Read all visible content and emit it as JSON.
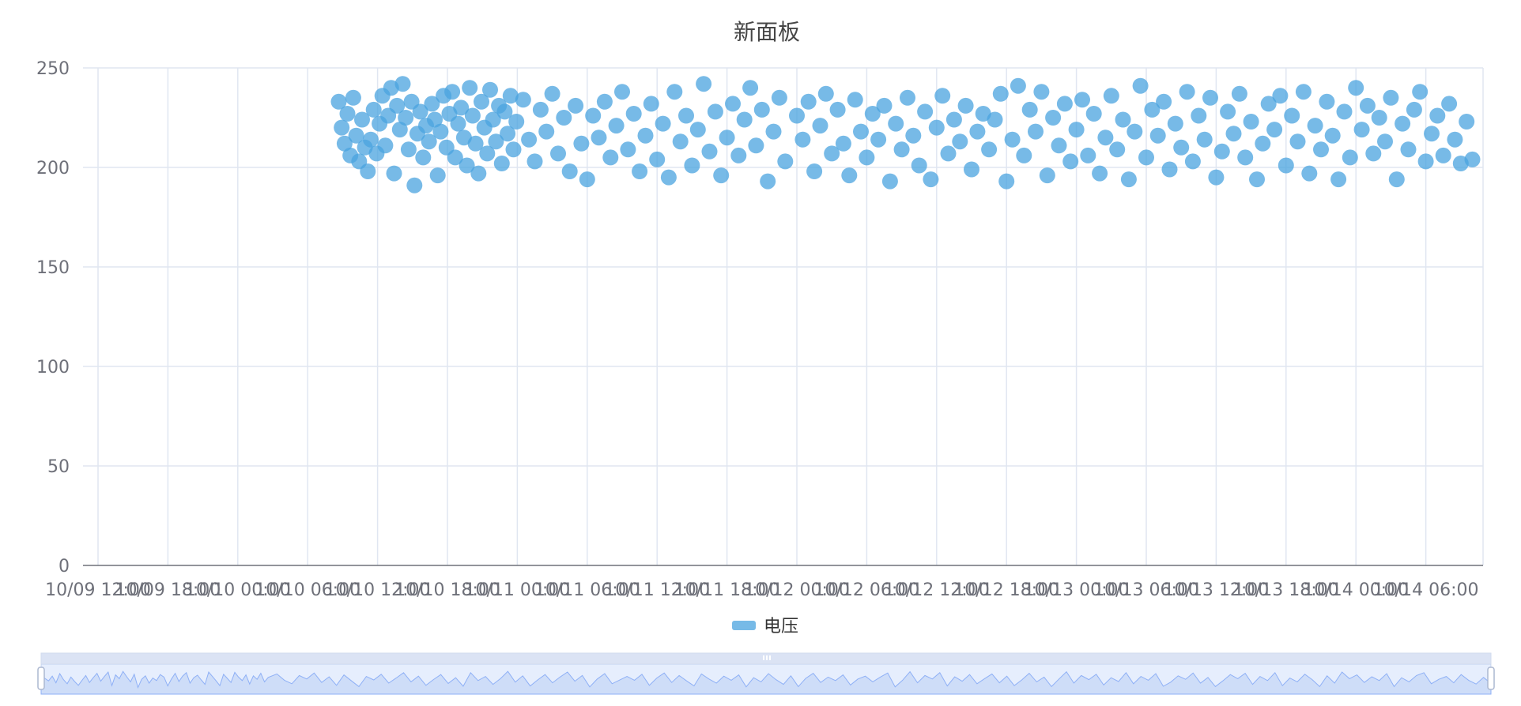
{
  "chart_data": {
    "type": "scatter",
    "title": "新面板",
    "legend": {
      "entries": [
        "电压"
      ],
      "position": "bottom-center"
    },
    "xaxis": {
      "type": "time",
      "tick_labels": [
        "10/09 12:00",
        "10/09 18:00",
        "10/10 00:00",
        "10/10 06:00",
        "10/10 12:00",
        "10/10 18:00",
        "10/11 00:00",
        "10/11 06:00",
        "10/11 12:00",
        "10/11 18:00",
        "10/12 00:00",
        "10/12 06:00",
        "10/12 12:00",
        "10/12 18:00",
        "10/13 00:00",
        "10/13 06:00",
        "10/13 12:00",
        "10/13 18:00",
        "10/14 00:00",
        "10/14 06:00"
      ],
      "range": [
        "10/09 12:00",
        "10/14 10:00"
      ]
    },
    "yaxis": {
      "range": [
        0,
        250
      ],
      "ticks": [
        0,
        50,
        100,
        150,
        200,
        250
      ]
    },
    "grid": true,
    "series": [
      {
        "name": "电压",
        "color": "#4aa3df",
        "points": [
          [
            "10/10 08:40",
            233
          ],
          [
            "10/10 08:55",
            220
          ],
          [
            "10/10 09:10",
            212
          ],
          [
            "10/10 09:25",
            227
          ],
          [
            "10/10 09:40",
            206
          ],
          [
            "10/10 09:55",
            235
          ],
          [
            "10/10 10:10",
            216
          ],
          [
            "10/10 10:25",
            203
          ],
          [
            "10/10 10:40",
            224
          ],
          [
            "10/10 10:55",
            210
          ],
          [
            "10/10 11:10",
            198
          ],
          [
            "10/10 11:25",
            214
          ],
          [
            "10/10 11:40",
            229
          ],
          [
            "10/10 11:55",
            207
          ],
          [
            "10/10 12:10",
            222
          ],
          [
            "10/10 12:25",
            236
          ],
          [
            "10/10 12:40",
            211
          ],
          [
            "10/10 12:55",
            226
          ],
          [
            "10/10 13:10",
            240
          ],
          [
            "10/10 13:25",
            197
          ],
          [
            "10/10 13:40",
            231
          ],
          [
            "10/10 13:55",
            219
          ],
          [
            "10/10 14:10",
            242
          ],
          [
            "10/10 14:25",
            225
          ],
          [
            "10/10 14:40",
            209
          ],
          [
            "10/10 14:55",
            233
          ],
          [
            "10/10 15:10",
            191
          ],
          [
            "10/10 15:25",
            217
          ],
          [
            "10/10 15:40",
            228
          ],
          [
            "10/10 15:55",
            205
          ],
          [
            "10/10 16:10",
            221
          ],
          [
            "10/10 16:25",
            213
          ],
          [
            "10/10 16:40",
            232
          ],
          [
            "10/10 16:55",
            224
          ],
          [
            "10/10 17:10",
            196
          ],
          [
            "10/10 17:25",
            218
          ],
          [
            "10/10 17:40",
            236
          ],
          [
            "10/10 17:55",
            210
          ],
          [
            "10/10 18:10",
            227
          ],
          [
            "10/10 18:25",
            238
          ],
          [
            "10/10 18:40",
            205
          ],
          [
            "10/10 18:55",
            222
          ],
          [
            "10/10 19:10",
            230
          ],
          [
            "10/10 19:25",
            215
          ],
          [
            "10/10 19:40",
            201
          ],
          [
            "10/10 19:55",
            240
          ],
          [
            "10/10 20:10",
            226
          ],
          [
            "10/10 20:25",
            212
          ],
          [
            "10/10 20:40",
            197
          ],
          [
            "10/10 20:55",
            233
          ],
          [
            "10/10 21:10",
            220
          ],
          [
            "10/10 21:25",
            207
          ],
          [
            "10/10 21:40",
            239
          ],
          [
            "10/10 21:55",
            224
          ],
          [
            "10/10 22:10",
            213
          ],
          [
            "10/10 22:25",
            231
          ],
          [
            "10/10 22:40",
            202
          ],
          [
            "10/10 22:55",
            228
          ],
          [
            "10/10 23:10",
            217
          ],
          [
            "10/10 23:25",
            236
          ],
          [
            "10/10 23:40",
            209
          ],
          [
            "10/10 23:55",
            223
          ],
          [
            "10/11 00:30",
            234
          ],
          [
            "10/11 01:00",
            214
          ],
          [
            "10/11 01:30",
            203
          ],
          [
            "10/11 02:00",
            229
          ],
          [
            "10/11 02:30",
            218
          ],
          [
            "10/11 03:00",
            237
          ],
          [
            "10/11 03:30",
            207
          ],
          [
            "10/11 04:00",
            225
          ],
          [
            "10/11 04:30",
            198
          ],
          [
            "10/11 05:00",
            231
          ],
          [
            "10/11 05:30",
            212
          ],
          [
            "10/11 06:00",
            194
          ],
          [
            "10/11 06:30",
            226
          ],
          [
            "10/11 07:00",
            215
          ],
          [
            "10/11 07:30",
            233
          ],
          [
            "10/11 08:00",
            205
          ],
          [
            "10/11 08:30",
            221
          ],
          [
            "10/11 09:00",
            238
          ],
          [
            "10/11 09:30",
            209
          ],
          [
            "10/11 10:00",
            227
          ],
          [
            "10/11 10:30",
            198
          ],
          [
            "10/11 11:00",
            216
          ],
          [
            "10/11 11:30",
            232
          ],
          [
            "10/11 12:00",
            204
          ],
          [
            "10/11 12:30",
            222
          ],
          [
            "10/11 13:00",
            195
          ],
          [
            "10/11 13:30",
            238
          ],
          [
            "10/11 14:00",
            213
          ],
          [
            "10/11 14:30",
            226
          ],
          [
            "10/11 15:00",
            201
          ],
          [
            "10/11 15:30",
            219
          ],
          [
            "10/11 16:00",
            242
          ],
          [
            "10/11 16:30",
            208
          ],
          [
            "10/11 17:00",
            228
          ],
          [
            "10/11 17:30",
            196
          ],
          [
            "10/11 18:00",
            215
          ],
          [
            "10/11 18:30",
            232
          ],
          [
            "10/11 19:00",
            206
          ],
          [
            "10/11 19:30",
            224
          ],
          [
            "10/11 20:00",
            240
          ],
          [
            "10/11 20:30",
            211
          ],
          [
            "10/11 21:00",
            229
          ],
          [
            "10/11 21:30",
            193
          ],
          [
            "10/11 22:00",
            218
          ],
          [
            "10/11 22:30",
            235
          ],
          [
            "10/11 23:00",
            203
          ],
          [
            "10/12 00:00",
            226
          ],
          [
            "10/12 00:30",
            214
          ],
          [
            "10/12 01:00",
            233
          ],
          [
            "10/12 01:30",
            198
          ],
          [
            "10/12 02:00",
            221
          ],
          [
            "10/12 02:30",
            237
          ],
          [
            "10/12 03:00",
            207
          ],
          [
            "10/12 03:30",
            229
          ],
          [
            "10/12 04:00",
            212
          ],
          [
            "10/12 04:30",
            196
          ],
          [
            "10/12 05:00",
            234
          ],
          [
            "10/12 05:30",
            218
          ],
          [
            "10/12 06:00",
            205
          ],
          [
            "10/12 06:30",
            227
          ],
          [
            "10/12 07:00",
            214
          ],
          [
            "10/12 07:30",
            231
          ],
          [
            "10/12 08:00",
            193
          ],
          [
            "10/12 08:30",
            222
          ],
          [
            "10/12 09:00",
            209
          ],
          [
            "10/12 09:30",
            235
          ],
          [
            "10/12 10:00",
            216
          ],
          [
            "10/12 10:30",
            201
          ],
          [
            "10/12 11:00",
            228
          ],
          [
            "10/12 11:30",
            194
          ],
          [
            "10/12 12:00",
            220
          ],
          [
            "10/12 12:30",
            236
          ],
          [
            "10/12 13:00",
            207
          ],
          [
            "10/12 13:30",
            224
          ],
          [
            "10/12 14:00",
            213
          ],
          [
            "10/12 14:30",
            231
          ],
          [
            "10/12 15:00",
            199
          ],
          [
            "10/12 15:30",
            218
          ],
          [
            "10/12 16:00",
            227
          ],
          [
            "10/12 16:30",
            209
          ],
          [
            "10/12 17:00",
            224
          ],
          [
            "10/12 17:30",
            237
          ],
          [
            "10/12 18:00",
            193
          ],
          [
            "10/12 18:30",
            214
          ],
          [
            "10/12 19:00",
            241
          ],
          [
            "10/12 19:30",
            206
          ],
          [
            "10/12 20:00",
            229
          ],
          [
            "10/12 20:30",
            218
          ],
          [
            "10/12 21:00",
            238
          ],
          [
            "10/12 21:30",
            196
          ],
          [
            "10/12 22:00",
            225
          ],
          [
            "10/12 22:30",
            211
          ],
          [
            "10/12 23:00",
            232
          ],
          [
            "10/12 23:30",
            203
          ],
          [
            "10/13 00:00",
            219
          ],
          [
            "10/13 00:30",
            234
          ],
          [
            "10/13 01:00",
            206
          ],
          [
            "10/13 01:30",
            227
          ],
          [
            "10/13 02:00",
            197
          ],
          [
            "10/13 02:30",
            215
          ],
          [
            "10/13 03:00",
            236
          ],
          [
            "10/13 03:30",
            209
          ],
          [
            "10/13 04:00",
            224
          ],
          [
            "10/13 04:30",
            194
          ],
          [
            "10/13 05:00",
            218
          ],
          [
            "10/13 05:30",
            241
          ],
          [
            "10/13 06:00",
            205
          ],
          [
            "10/13 06:30",
            229
          ],
          [
            "10/13 07:00",
            216
          ],
          [
            "10/13 07:30",
            233
          ],
          [
            "10/13 08:00",
            199
          ],
          [
            "10/13 08:30",
            222
          ],
          [
            "10/13 09:00",
            210
          ],
          [
            "10/13 09:30",
            238
          ],
          [
            "10/13 10:00",
            203
          ],
          [
            "10/13 10:30",
            226
          ],
          [
            "10/13 11:00",
            214
          ],
          [
            "10/13 11:30",
            235
          ],
          [
            "10/13 12:00",
            195
          ],
          [
            "10/13 12:30",
            208
          ],
          [
            "10/13 13:00",
            228
          ],
          [
            "10/13 13:30",
            217
          ],
          [
            "10/13 14:00",
            237
          ],
          [
            "10/13 14:30",
            205
          ],
          [
            "10/13 15:00",
            223
          ],
          [
            "10/13 15:30",
            194
          ],
          [
            "10/13 16:00",
            212
          ],
          [
            "10/13 16:30",
            232
          ],
          [
            "10/13 17:00",
            219
          ],
          [
            "10/13 17:30",
            236
          ],
          [
            "10/13 18:00",
            201
          ],
          [
            "10/13 18:30",
            226
          ],
          [
            "10/13 19:00",
            213
          ],
          [
            "10/13 19:30",
            238
          ],
          [
            "10/13 20:00",
            197
          ],
          [
            "10/13 20:30",
            221
          ],
          [
            "10/13 21:00",
            209
          ],
          [
            "10/13 21:30",
            233
          ],
          [
            "10/13 22:00",
            216
          ],
          [
            "10/13 22:30",
            194
          ],
          [
            "10/13 23:00",
            228
          ],
          [
            "10/13 23:30",
            205
          ],
          [
            "10/14 00:00",
            240
          ],
          [
            "10/14 00:30",
            219
          ],
          [
            "10/14 01:00",
            231
          ],
          [
            "10/14 01:30",
            207
          ],
          [
            "10/14 02:00",
            225
          ],
          [
            "10/14 02:30",
            213
          ],
          [
            "10/14 03:00",
            235
          ],
          [
            "10/14 03:30",
            194
          ],
          [
            "10/14 04:00",
            222
          ],
          [
            "10/14 04:30",
            209
          ],
          [
            "10/14 05:00",
            229
          ],
          [
            "10/14 05:30",
            238
          ],
          [
            "10/14 06:00",
            203
          ],
          [
            "10/14 06:30",
            217
          ],
          [
            "10/14 07:00",
            226
          ],
          [
            "10/14 07:30",
            206
          ],
          [
            "10/14 08:00",
            232
          ],
          [
            "10/14 08:30",
            214
          ],
          [
            "10/14 09:00",
            202
          ],
          [
            "10/14 09:30",
            223
          ],
          [
            "10/14 10:00",
            204
          ]
        ]
      }
    ]
  },
  "datazoom": {
    "start_fraction": 0.0,
    "end_fraction": 1.0
  }
}
